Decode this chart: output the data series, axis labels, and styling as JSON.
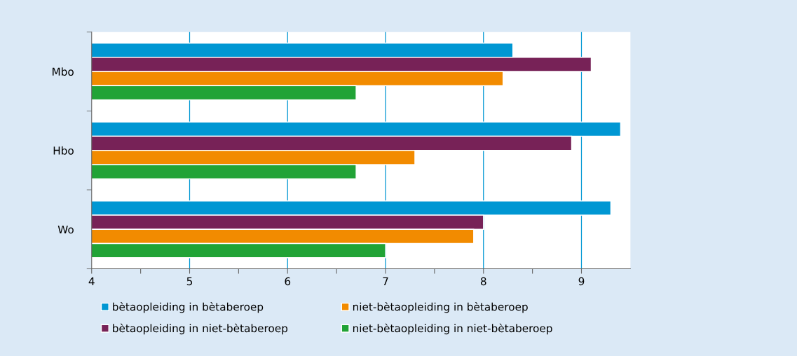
{
  "chart_data": {
    "type": "bar",
    "orientation": "horizontal",
    "categories": [
      "Mbo",
      "Hbo",
      "Wo"
    ],
    "series": [
      {
        "name": "bètaopleiding in bètaberoep",
        "color": "#0097d3",
        "values": [
          8.3,
          9.4,
          9.3
        ]
      },
      {
        "name": "bètaopleiding in niet-bètaberoep",
        "color": "#772257",
        "values": [
          9.1,
          8.9,
          8.0
        ]
      },
      {
        "name": "niet-bètaopleiding in bètaberoep",
        "color": "#f28b00",
        "values": [
          8.2,
          7.3,
          7.9
        ]
      },
      {
        "name": "niet-bètaopleiding in niet-bètaberoep",
        "color": "#21a336",
        "values": [
          6.7,
          6.7,
          7.0
        ]
      }
    ],
    "xlim": [
      4,
      9.5
    ],
    "xticks": [
      4,
      {
        "value": 4.5,
        "label": null
      },
      5,
      {
        "value": 5.5,
        "label": null
      },
      6,
      {
        "value": 6.5,
        "label": null
      },
      7,
      {
        "value": 7.5,
        "label": null
      },
      8,
      {
        "value": 8.5,
        "label": null
      },
      9
    ],
    "grid": "x",
    "legend": "bottom"
  }
}
